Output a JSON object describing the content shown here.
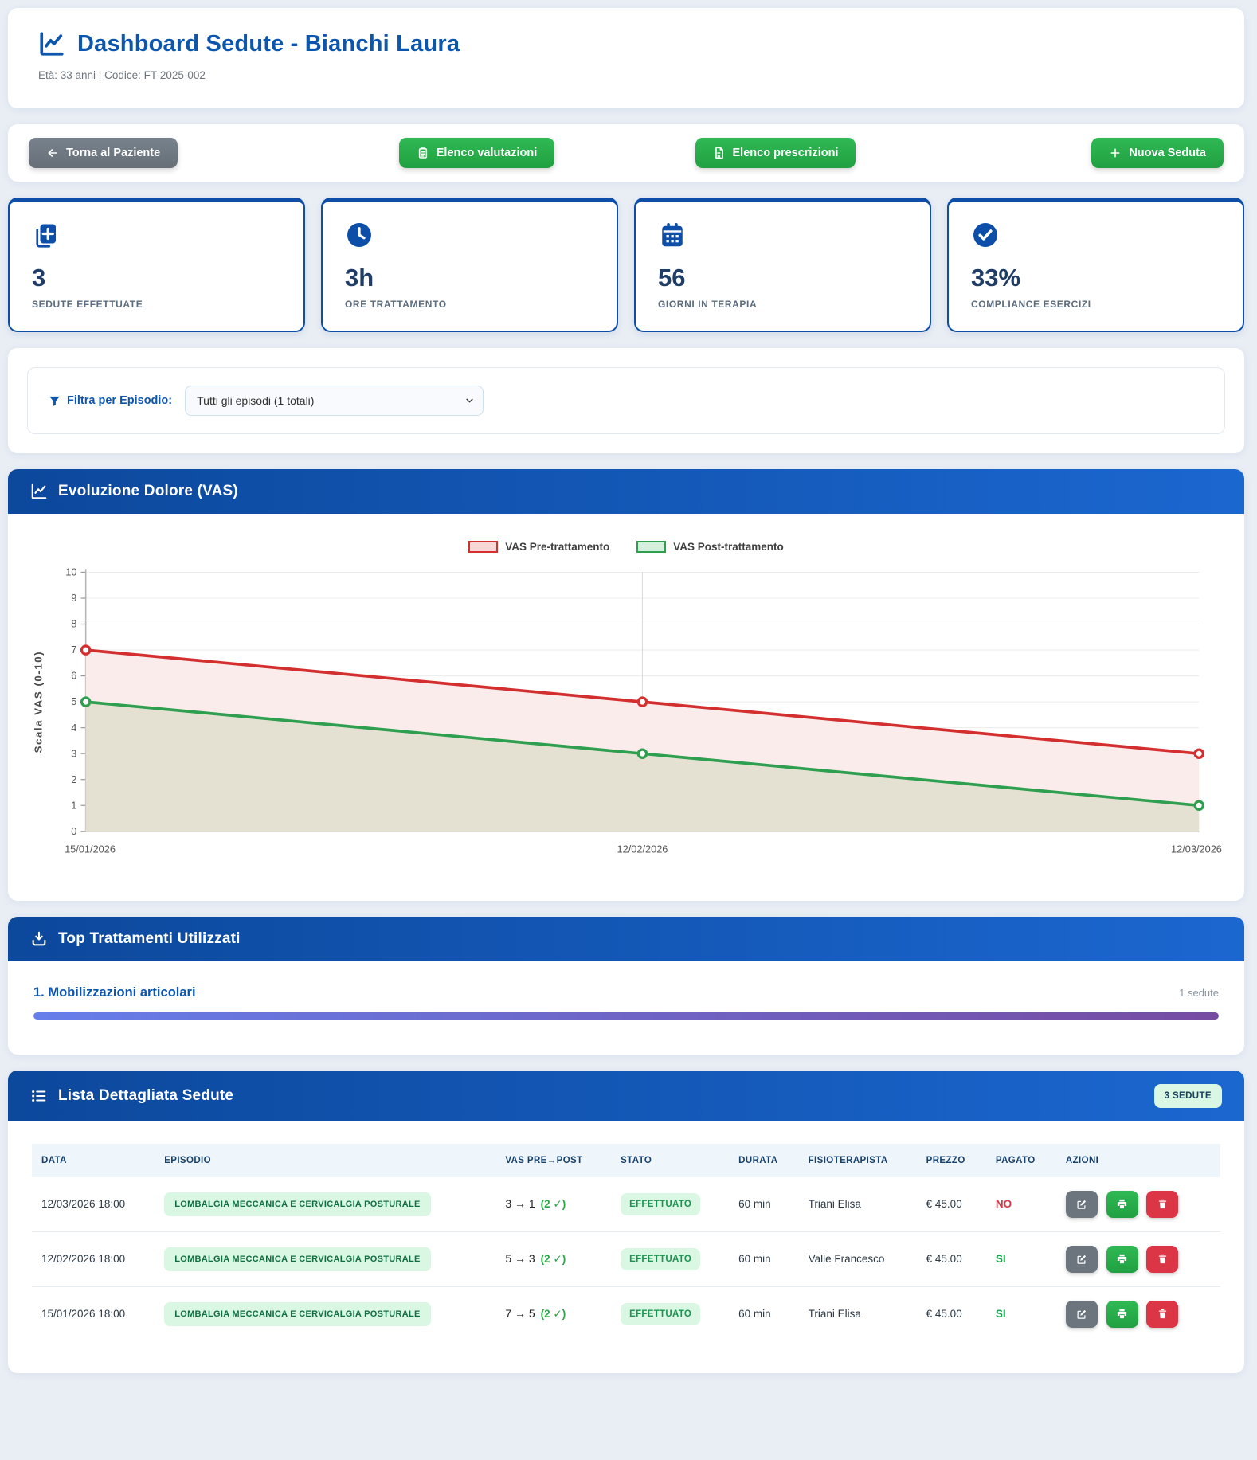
{
  "page": {
    "background": "#e9eef5",
    "accent_blue": "#0d4fa8",
    "green": "#27a844",
    "red": "#dc3545"
  },
  "header": {
    "title": "Dashboard Sedute - Bianchi Laura",
    "subtitle": "Età: 33 anni | Codice: FT-2025-002",
    "icon": "chart-line-icon"
  },
  "toolbar": {
    "back_label": "Torna al Paziente",
    "evaluations_label": "Elenco valutazioni",
    "prescriptions_label": "Elenco prescrizioni",
    "new_session_label": "Nuova Seduta"
  },
  "stats": [
    {
      "icon": "medical-notes-icon",
      "value": "3",
      "label": "SEDUTE EFFETTUATE"
    },
    {
      "icon": "clock-icon",
      "value": "3h",
      "label": "ORE TRATTAMENTO"
    },
    {
      "icon": "calendar-icon",
      "value": "56",
      "label": "GIORNI IN TERAPIA"
    },
    {
      "icon": "check-circle-icon",
      "value": "33%",
      "label": "COMPLIANCE ESERCIZI"
    }
  ],
  "filter": {
    "label": "Filtra per Episodio:",
    "selected_option": "Tutti gli episodi (1 totali)"
  },
  "chart_section": {
    "title": "Evoluzione Dolore (VAS)"
  },
  "chart_data": {
    "type": "line",
    "title": "Evoluzione Dolore (VAS)",
    "x": [
      "15/01/2026",
      "12/02/2026",
      "12/03/2026"
    ],
    "series": [
      {
        "name": "VAS Pre-trattamento",
        "values": [
          7,
          5,
          3
        ],
        "color": "#d32f2f",
        "area_fill": "#fbecec",
        "legend_fill": "#f6d6d6"
      },
      {
        "name": "VAS Post-trattamento",
        "values": [
          5,
          3,
          1
        ],
        "color": "#2e9e4f",
        "area_fill": "#e4e1d3",
        "legend_fill": "#d4f0dc"
      }
    ],
    "ylabel": "Scala VAS (0-10)",
    "ylim": [
      0,
      10
    ],
    "yticks": [
      0,
      1,
      2,
      3,
      4,
      5,
      6,
      7,
      8,
      9,
      10
    ],
    "grid": true,
    "legend_position": "top"
  },
  "treatments": {
    "title": "Top Trattamenti Utilizzati",
    "items": [
      {
        "name": "1. Mobilizzazioni articolari",
        "count_label": "1 sedute",
        "percent": 100,
        "bar_gradient_start": "#667eea",
        "bar_gradient_end": "#764ba2"
      }
    ]
  },
  "sessions": {
    "title": "Lista Dettagliata Sedute",
    "count_badge": "3 SEDUTE",
    "columns": [
      "DATA",
      "EPISODIO",
      "VAS PRE→POST",
      "STATO",
      "DURATA",
      "FISIOTERAPISTA",
      "PREZZO",
      "PAGATO",
      "AZIONI"
    ],
    "rows": [
      {
        "date": "12/03/2026 18:00",
        "episode": "LOMBALGIA MECCANICA E CERVICALGIA POSTURALE",
        "vas": "3 → 1",
        "vas_note": "(2 ✓)",
        "status": "EFFETTUATO",
        "duration": "60 min",
        "therapist": "Triani Elisa",
        "price": "€ 45.00",
        "paid": "NO"
      },
      {
        "date": "12/02/2026 18:00",
        "episode": "LOMBALGIA MECCANICA E CERVICALGIA POSTURALE",
        "vas": "5 → 3",
        "vas_note": "(2 ✓)",
        "status": "EFFETTUATO",
        "duration": "60 min",
        "therapist": "Valle Francesco",
        "price": "€ 45.00",
        "paid": "SI"
      },
      {
        "date": "15/01/2026 18:00",
        "episode": "LOMBALGIA MECCANICA E CERVICALGIA POSTURALE",
        "vas": "7 → 5",
        "vas_note": "(2 ✓)",
        "status": "EFFETTUATO",
        "duration": "60 min",
        "therapist": "Triani Elisa",
        "price": "€ 45.00",
        "paid": "SI"
      }
    ]
  }
}
